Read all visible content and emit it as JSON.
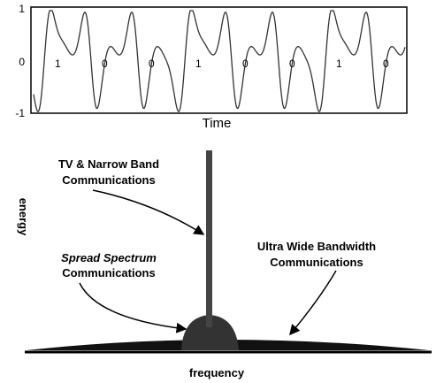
{
  "waveform": {
    "yticks": [
      "1",
      "0",
      "-1"
    ],
    "bits": [
      "1",
      "0",
      "0",
      "1",
      "0",
      "0",
      "1",
      "0"
    ],
    "xlabel": "Time"
  },
  "spectrum": {
    "ylabel": "energy",
    "xlabel": "frequency",
    "narrow_band": [
      "TV & Narrow Band",
      "Communications"
    ],
    "spread_spectrum": [
      "Spread Spectrum",
      "Communications"
    ],
    "uwb": [
      "Ultra Wide Bandwidth",
      "Communications"
    ]
  }
}
